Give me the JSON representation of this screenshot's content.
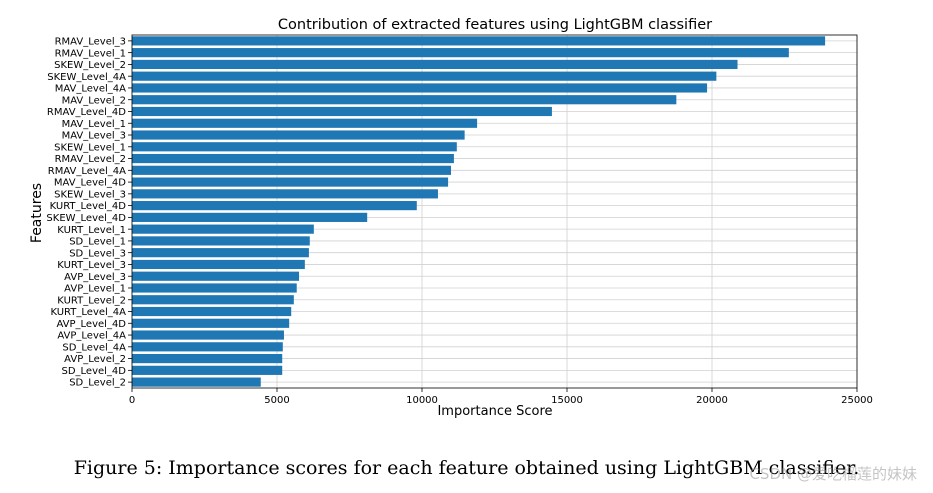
{
  "chart_data": {
    "type": "bar",
    "orientation": "horizontal",
    "title": "Contribution of extracted features using LightGBM classifier",
    "xlabel": "Importance Score",
    "ylabel": "Features",
    "xlim": [
      0,
      25000
    ],
    "xticks": [
      0,
      5000,
      10000,
      15000,
      20000,
      25000
    ],
    "grid": true,
    "bar_color": "#1f77b4",
    "categories": [
      "RMAV_Level_3",
      "RMAV_Level_1",
      "SKEW_Level_2",
      "SKEW_Level_4A",
      "MAV_Level_4A",
      "MAV_Level_2",
      "RMAV_Level_4D",
      "MAV_Level_1",
      "MAV_Level_3",
      "SKEW_Level_1",
      "RMAV_Level_2",
      "RMAV_Level_4A",
      "MAV_Level_4D",
      "SKEW_Level_3",
      "KURT_Level_4D",
      "SKEW_Level_4D",
      "KURT_Level_1",
      "SD_Level_1",
      "SD_Level_3",
      "KURT_Level_3",
      "AVP_Level_3",
      "AVP_Level_1",
      "KURT_Level_2",
      "KURT_Level_4A",
      "AVP_Level_4D",
      "AVP_Level_4A",
      "SD_Level_4A",
      "AVP_Level_2",
      "SD_Level_4D",
      "SD_Level_2"
    ],
    "values": [
      23900,
      22650,
      20880,
      20150,
      19830,
      18770,
      14480,
      11900,
      11470,
      11200,
      11100,
      11000,
      10900,
      10550,
      9820,
      8110,
      6270,
      6130,
      6100,
      5960,
      5760,
      5680,
      5580,
      5490,
      5420,
      5240,
      5200,
      5180,
      5180,
      4440
    ]
  },
  "caption": "Figure 5: Importance scores for each feature obtained using LightGBM classifier.",
  "watermark": "CSDN @爱吃榴莲的妹妹"
}
